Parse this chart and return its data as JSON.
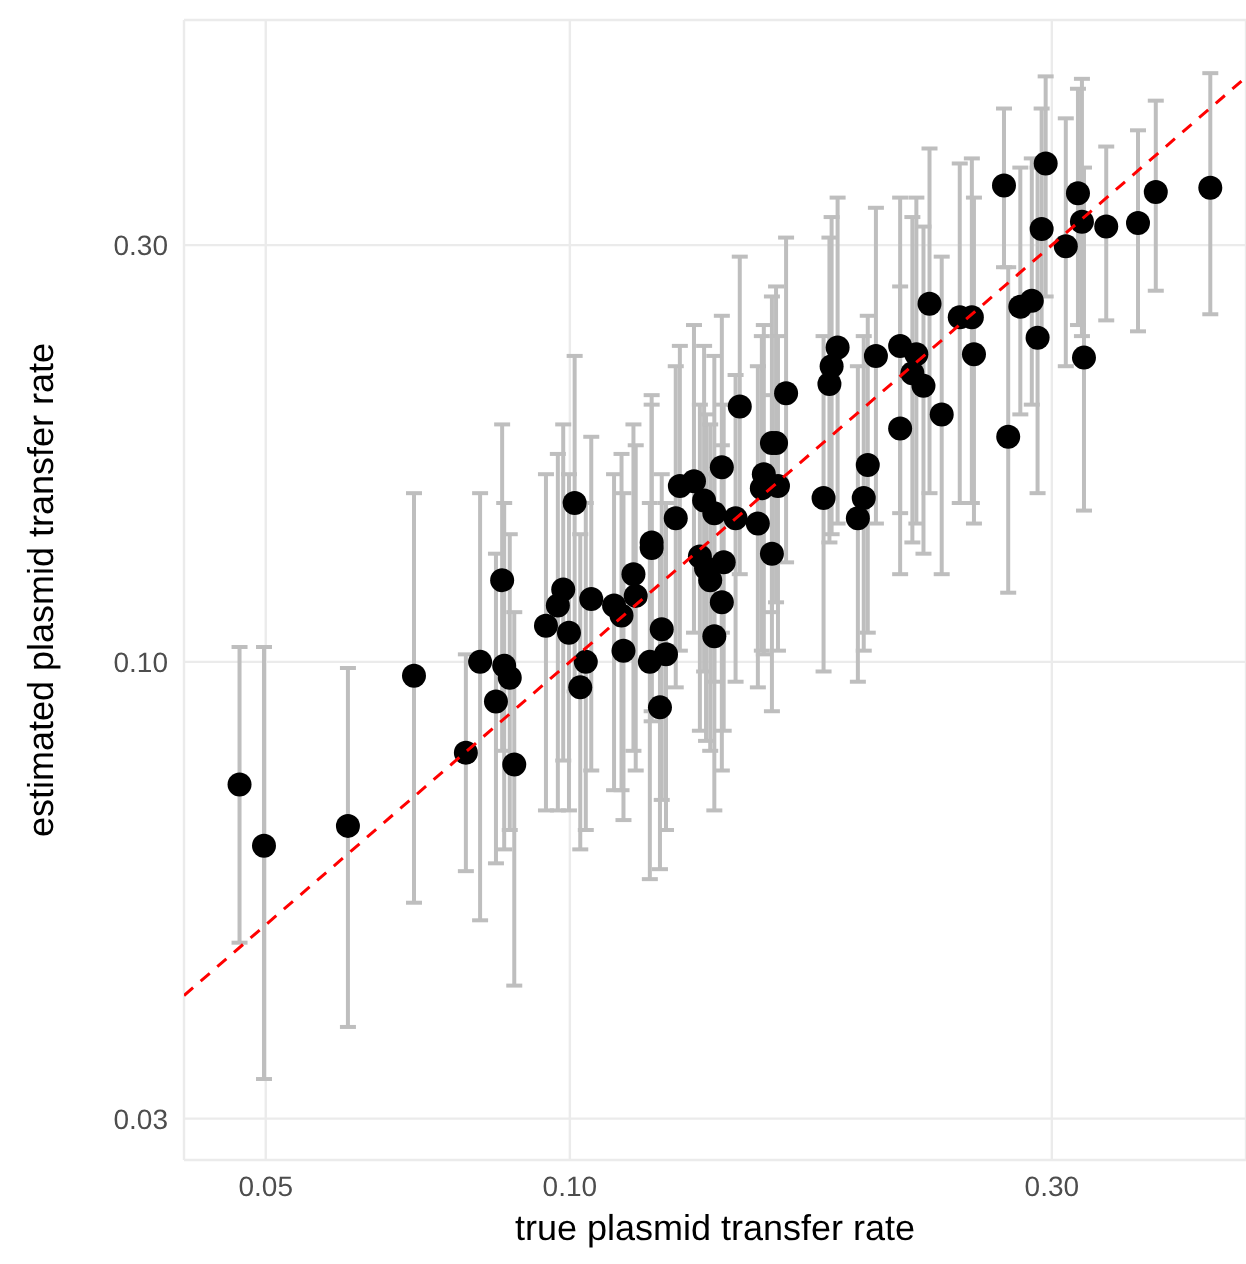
{
  "chart_data": {
    "type": "scatter",
    "xlabel": "true plasmid transfer rate",
    "ylabel": "estimated plasmid transfer rate",
    "log": "xy",
    "grid": true,
    "xlim": [
      0.0415,
      0.467
    ],
    "xticks": [
      0.05,
      {
        "value": 0.1,
        "label": "0.10"
      },
      {
        "value": 0.3,
        "label": "0.30"
      }
    ],
    "ylim": [
      0.0269,
      0.543
    ],
    "yticks": [
      {
        "value": 0.03,
        "label": "0.03"
      },
      {
        "value": 0.1,
        "label": "0.10"
      },
      {
        "value": 0.3,
        "label": "0.30"
      }
    ],
    "x": [
      0.0471,
      0.0498,
      0.0603,
      0.0701,
      0.0789,
      0.0815,
      0.0845,
      0.0861,
      0.0872,
      0.0881,
      0.0857,
      0.1473,
      0.1585,
      0.1414,
      0.1285,
      0.1327,
      0.1358,
      0.139,
      0.1273,
      0.1459,
      0.1535,
      0.1556,
      0.1585,
      0.1205,
      0.1205,
      0.1156,
      0.1162,
      0.1345,
      0.1364,
      0.142,
      0.1377,
      0.1414,
      0.139,
      0.1125,
      0.1106,
      0.113,
      0.1233,
      0.1245,
      0.12,
      0.1228,
      0.1011,
      0.0985,
      0.105,
      0.0973,
      0.0947,
      0.0998,
      0.1037,
      0.1024,
      0.227,
      0.2432,
      0.25,
      0.2512,
      0.1841,
      0.1816,
      0.1807,
      0.2009,
      0.2123,
      0.2203,
      0.2183,
      0.2239,
      0.2334,
      0.2123,
      0.1637,
      0.16,
      0.1549,
      0.1607,
      0.1783,
      0.1972,
      0.1954,
      0.1928,
      0.4305,
      0.3802,
      0.3651,
      0.3396,
      0.3213,
      0.3184,
      0.3097,
      0.2958,
      0.2931,
      0.269,
      0.3228,
      0.2904,
      0.2792,
      0.2866,
      0.2716
    ],
    "series": [
      {
        "color": "#000000",
        "marker": "circle",
        "values": [
          0.0724,
          0.0616,
          0.0649,
          0.0964,
          0.0787,
          0.1,
          0.0901,
          0.099,
          0.0959,
          0.0763,
          0.124,
          0.196,
          0.178,
          0.167,
          0.159,
          0.161,
          0.153,
          0.148,
          0.146,
          0.146,
          0.144,
          0.164,
          0.133,
          0.137,
          0.135,
          0.126,
          0.119,
          0.132,
          0.128,
          0.13,
          0.124,
          0.117,
          0.107,
          0.113,
          0.116,
          0.103,
          0.109,
          0.102,
          0.1,
          0.0887,
          0.152,
          0.121,
          0.118,
          0.116,
          0.11,
          0.108,
          0.1,
          0.0935,
          0.257,
          0.248,
          0.248,
          0.225,
          0.229,
          0.218,
          0.208,
          0.224,
          0.23,
          0.225,
          0.214,
          0.207,
          0.192,
          0.185,
          0.203,
          0.178,
          0.158,
          0.159,
          0.154,
          0.168,
          0.154,
          0.146,
          0.349,
          0.345,
          0.318,
          0.315,
          0.319,
          0.344,
          0.299,
          0.372,
          0.313,
          0.351,
          0.223,
          0.235,
          0.255,
          0.259,
          0.181
        ],
        "errors": [
          [
            0.0477,
            0.104
          ],
          [
            0.0333,
            0.104
          ],
          [
            0.0382,
            0.0984
          ],
          [
            0.053,
            0.156
          ],
          [
            0.0576,
            0.102
          ],
          [
            0.0506,
            0.156
          ],
          [
            0.0588,
            0.133
          ],
          [
            0.061,
            0.152
          ],
          [
            0.0642,
            0.14
          ],
          [
            0.0426,
            0.114
          ],
          [
            0.0791,
            0.187
          ],
          [
            0.126,
            0.291
          ],
          [
            0.114,
            0.262
          ],
          [
            0.108,
            0.249
          ],
          [
            0.103,
            0.23
          ],
          [
            0.108,
            0.243
          ],
          [
            0.0975,
            0.23
          ],
          [
            0.0949,
            0.224
          ],
          [
            0.0935,
            0.218
          ],
          [
            0.0949,
            0.213
          ],
          [
            0.0935,
            0.218
          ],
          [
            0.102,
            0.243
          ],
          [
            0.0878,
            0.202
          ],
          [
            0.0878,
            0.202
          ],
          [
            0.0855,
            0.197
          ],
          [
            0.0791,
            0.187
          ],
          [
            0.0751,
            0.177
          ],
          [
            0.0834,
            0.197
          ],
          [
            0.0812,
            0.192
          ],
          [
            0.0834,
            0.197
          ],
          [
            0.0791,
            0.187
          ],
          [
            0.0751,
            0.177
          ],
          [
            0.0676,
            0.164
          ],
          [
            0.0713,
            0.173
          ],
          [
            0.0713,
            0.164
          ],
          [
            0.0659,
            0.156
          ],
          [
            0.0695,
            0.164
          ],
          [
            0.0642,
            0.152
          ],
          [
            0.0564,
            0.152
          ],
          [
            0.0579,
            0.133
          ],
          [
            0.0925,
            0.224
          ],
          [
            0.0771,
            0.187
          ],
          [
            0.0751,
            0.181
          ],
          [
            0.0676,
            0.173
          ],
          [
            0.0676,
            0.164
          ],
          [
            0.0676,
            0.164
          ],
          [
            0.0642,
            0.152
          ],
          [
            0.061,
            0.14
          ],
          [
            0.156,
            0.387
          ],
          [
            0.152,
            0.372
          ],
          [
            0.152,
            0.377
          ],
          [
            0.144,
            0.34
          ],
          [
            0.144,
            0.34
          ],
          [
            0.14,
            0.323
          ],
          [
            0.137,
            0.306
          ],
          [
            0.144,
            0.331
          ],
          [
            0.148,
            0.34
          ],
          [
            0.144,
            0.34
          ],
          [
            0.137,
            0.323
          ],
          [
            0.133,
            0.315
          ],
          [
            0.126,
            0.291
          ],
          [
            0.126,
            0.269
          ],
          [
            0.13,
            0.306
          ],
          [
            0.117,
            0.269
          ],
          [
            0.103,
            0.236
          ],
          [
            0.103,
            0.236
          ],
          [
            0.0975,
            0.236
          ],
          [
            0.108,
            0.249
          ],
          [
            0.103,
            0.236
          ],
          [
            0.0949,
            0.218
          ],
          [
            0.25,
            0.472
          ],
          [
            0.266,
            0.439
          ],
          [
            0.239,
            0.406
          ],
          [
            0.246,
            0.389
          ],
          [
            0.236,
            0.465
          ],
          [
            0.243,
            0.453
          ],
          [
            0.218,
            0.419
          ],
          [
            0.262,
            0.468
          ],
          [
            0.236,
            0.43
          ],
          [
            0.283,
            0.43
          ],
          [
            0.149,
            0.368
          ],
          [
            0.156,
            0.368
          ],
          [
            0.192,
            0.368
          ],
          [
            0.197,
            0.377
          ],
          [
            0.12,
            0.283
          ]
        ]
      },
      {
        "type": "line",
        "x": [
          0.0415,
          0.467
        ],
        "values": [
          0.0415,
          0.467
        ],
        "color": "#ff0000",
        "line_style": "dashed",
        "marker": "none"
      }
    ]
  }
}
